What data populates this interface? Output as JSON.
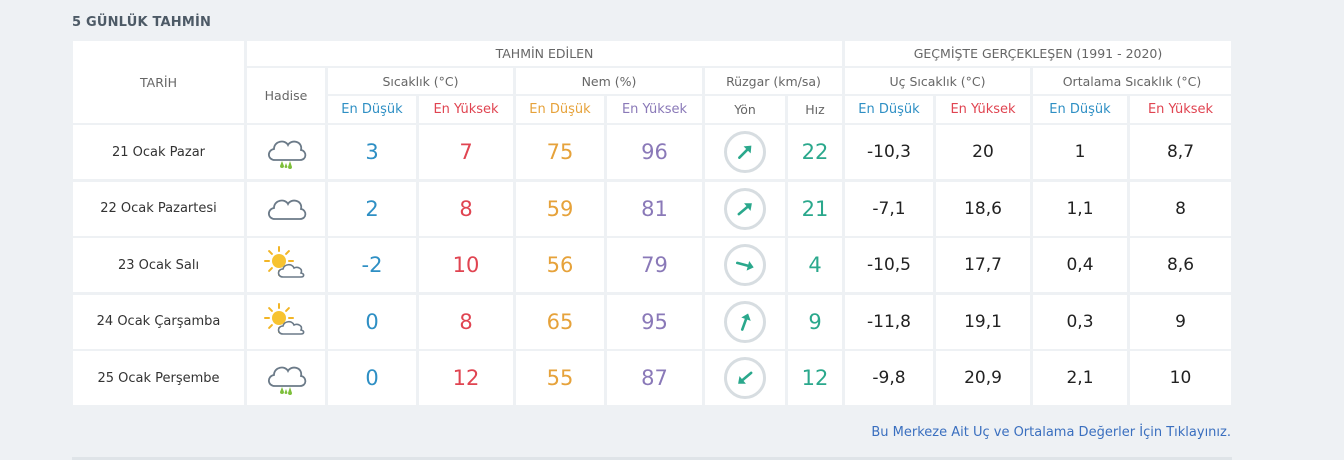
{
  "section_title": "5 GÜNLÜK TAHMİN",
  "headers": {
    "date": "TARİH",
    "event": "Hadise",
    "forecast": "TAHMİN EDİLEN",
    "history": "GEÇMİŞTE GERÇEKLEŞEN (1991 - 2020)",
    "temp": "Sıcaklık (°C)",
    "humidity": "Nem (%)",
    "wind": "Rüzgar (km/sa)",
    "extreme_temp": "Uç Sıcaklık (°C)",
    "avg_temp": "Ortalama Sıcaklık (°C)",
    "min": "En Düşük",
    "max": "En Yüksek",
    "dir": "Yön",
    "speed": "Hız"
  },
  "colors": {
    "blue": "#2e8fc4",
    "red": "#e04451",
    "orange": "#e6a23a",
    "purple": "#8a79b8",
    "teal": "#2aa88c"
  },
  "rows": [
    {
      "date": "21 Ocak Pazar",
      "icon": "cloud-rain-icon",
      "temp_min": "3",
      "temp_max": "7",
      "hum_min": "75",
      "hum_max": "96",
      "wind_dir_deg": 225,
      "wind_speed": "22",
      "ext_min": "-10,3",
      "ext_max": "20",
      "avg_min": "1",
      "avg_max": "8,7"
    },
    {
      "date": "22 Ocak Pazartesi",
      "icon": "cloud-icon",
      "temp_min": "2",
      "temp_max": "8",
      "hum_min": "59",
      "hum_max": "81",
      "wind_dir_deg": 230,
      "wind_speed": "21",
      "ext_min": "-7,1",
      "ext_max": "18,6",
      "avg_min": "1,1",
      "avg_max": "8"
    },
    {
      "date": "23 Ocak Salı",
      "icon": "partly-sunny-icon",
      "temp_min": "-2",
      "temp_max": "10",
      "hum_min": "56",
      "hum_max": "79",
      "wind_dir_deg": 285,
      "wind_speed": "4",
      "ext_min": "-10,5",
      "ext_max": "17,7",
      "avg_min": "0,4",
      "avg_max": "8,6"
    },
    {
      "date": "24 Ocak Çarşamba",
      "icon": "partly-sunny-icon",
      "temp_min": "0",
      "temp_max": "8",
      "hum_min": "65",
      "hum_max": "95",
      "wind_dir_deg": 200,
      "wind_speed": "9",
      "ext_min": "-11,8",
      "ext_max": "19,1",
      "avg_min": "0,3",
      "avg_max": "9"
    },
    {
      "date": "25 Ocak Perşembe",
      "icon": "cloud-rain-icon",
      "temp_min": "0",
      "temp_max": "12",
      "hum_min": "55",
      "hum_max": "87",
      "wind_dir_deg": 50,
      "wind_speed": "12",
      "ext_min": "-9,8",
      "ext_max": "20,9",
      "avg_min": "2,1",
      "avg_max": "10"
    }
  ],
  "footer_link": "Bu Merkeze Ait Uç ve Ortalama Değerler İçin Tıklayınız."
}
